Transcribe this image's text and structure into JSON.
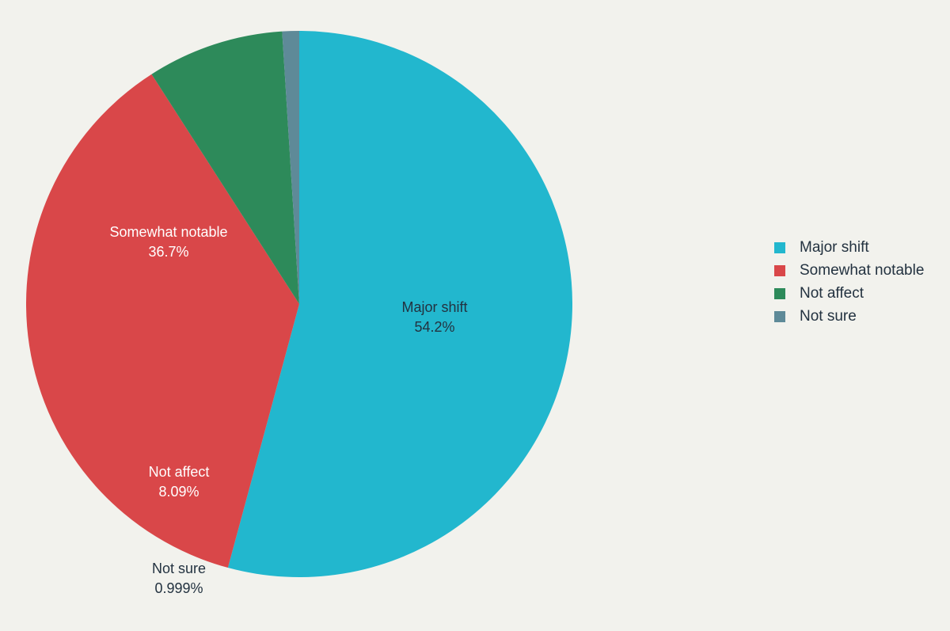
{
  "chart_data": {
    "type": "pie",
    "slices": [
      {
        "label": "Major shift",
        "value": 54.2,
        "value_label": "54.2%",
        "color": "#22b7ce"
      },
      {
        "label": "Somewhat notable",
        "value": 36.7,
        "value_label": "36.7%",
        "color": "#d94749"
      },
      {
        "label": "Not affect",
        "value": 8.09,
        "value_label": "8.09%",
        "color": "#2d8a5a"
      },
      {
        "label": "Not sure",
        "value": 0.999,
        "value_label": "0.999%",
        "color": "#5e8a98"
      }
    ],
    "legend": {
      "placement": "right",
      "items": [
        "Major shift",
        "Somewhat notable",
        "Not affect",
        "Not sure"
      ]
    },
    "start_angle": "top",
    "direction": "clockwise"
  }
}
